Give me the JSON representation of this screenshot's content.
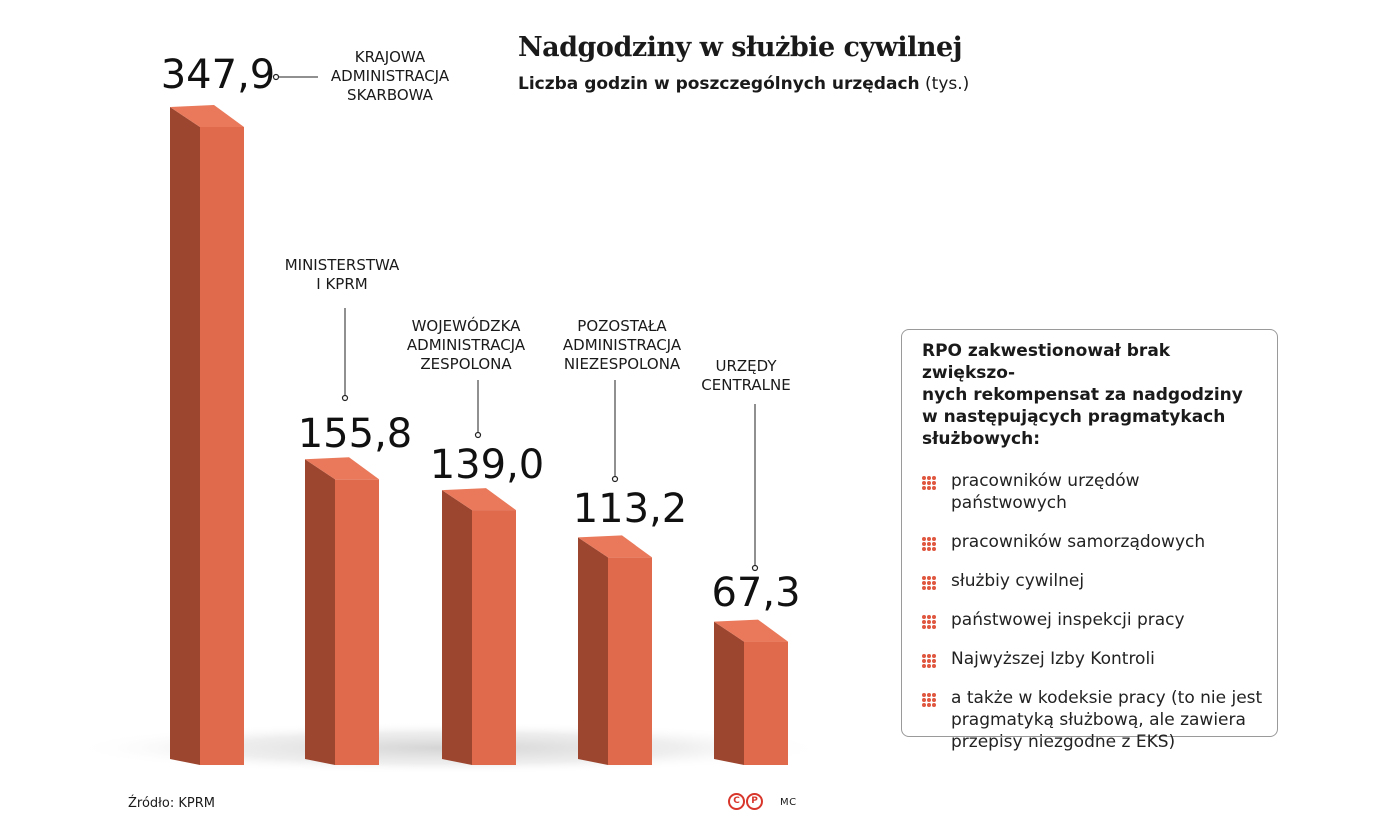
{
  "header": {
    "title": "Nadgodziny w służbie cywilnej",
    "subtitle_bold": "Liczba godzin w poszczególnych urzędach",
    "subtitle_unit": "(tys.)"
  },
  "chart_data": {
    "type": "bar",
    "title": "Nadgodziny w służbie cywilnej",
    "subtitle": "Liczba godzin w poszczególnych urzędach (tys.)",
    "categories": [
      "KRAJOWA ADMINISTRACJA SKARBOWA",
      "MINISTERSTWA I KPRM",
      "WOJEWÓDZKA ADMINISTRACJA ZESPOLONA",
      "POZOSTAŁA ADMINISTRACJA NIEZESPOLONA",
      "URZĘDY CENTRALNE"
    ],
    "category_lines": [
      [
        "KRAJOWA",
        "ADMINISTRACJA",
        "SKARBOWA"
      ],
      [
        "MINISTERSTWA",
        "I KPRM"
      ],
      [
        "WOJEWÓDZKA",
        "ADMINISTRACJA",
        "ZESPOLONA"
      ],
      [
        "POZOSTAŁA",
        "ADMINISTRACJA",
        "NIEZESPOLONA"
      ],
      [
        "URZĘDY",
        "CENTRALNE"
      ]
    ],
    "values": [
      347.9,
      155.8,
      139.0,
      113.2,
      67.3
    ],
    "value_labels": [
      "347,9",
      "155,8",
      "139,0",
      "113,2",
      "67,3"
    ],
    "unit": "tys.",
    "ylim": [
      0,
      347.9
    ],
    "xlabel": "",
    "ylabel": "",
    "colors": {
      "front": "#e06b4c",
      "side": "#9c4630",
      "top": "#e9795a"
    }
  },
  "infobox": {
    "title": "RPO zakwestionował brak zwiększo-\nnych rekompensat za nadgodziny\nw następujących pragmatykach\nsłużbowych:",
    "items": [
      "pracowników urzędów\npaństwowych",
      "pracowników samorządowych",
      "służbiy cywilnej",
      "państwowej inspekcji pracy",
      "Najwyższej Izby Kontroli",
      "a także w kodeksie pracy (to nie jest\npragmatyką służbową, ale zawiera\nprzepisy niezgodne z EKS)"
    ],
    "bullet_color": "#e0573f"
  },
  "footer": {
    "source": "Źródło: KPRM",
    "logo_letters": [
      "C",
      "P"
    ],
    "author": "MC"
  }
}
